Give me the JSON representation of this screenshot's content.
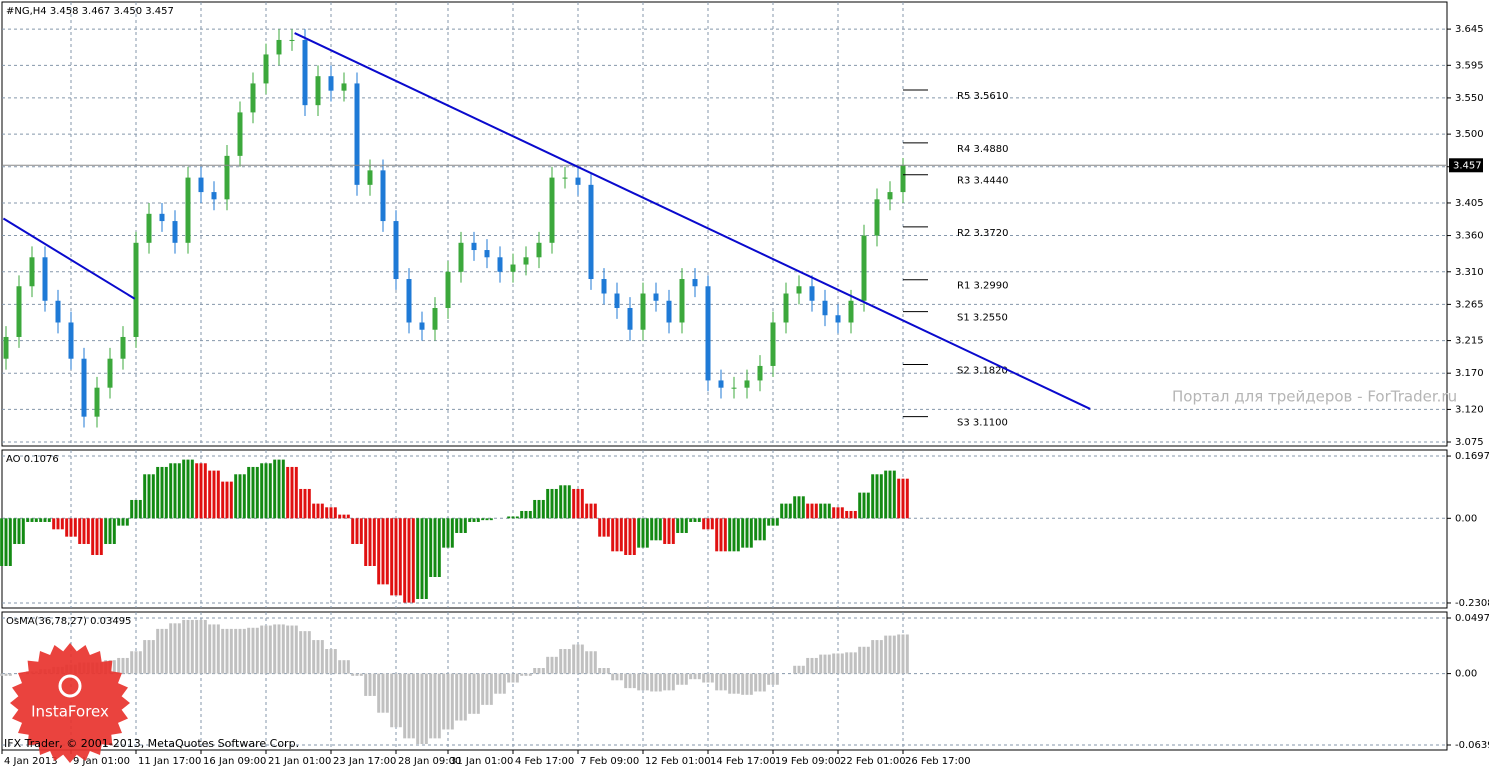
{
  "chart_data": [
    {
      "type": "candlestick",
      "title": "#NG,H4  3.458 3.467 3.450 3.457",
      "categories": [
        "4 Jan 2013",
        null,
        null,
        null,
        null,
        "9 Jan 01:00",
        null,
        null,
        null,
        null,
        "11 Jan 17:00",
        null,
        null,
        null,
        null,
        "16 Jan 09:00",
        null,
        null,
        null,
        null,
        "21 Jan 01:00",
        null,
        null,
        null,
        null,
        "23 Jan 17:00",
        null,
        null,
        null,
        null,
        "28 Jan 09:00",
        null,
        null,
        null,
        "31 Jan 01:00",
        null,
        null,
        null,
        null,
        "4 Feb 17:00",
        null,
        null,
        null,
        null,
        "7 Feb 09:00",
        null,
        null,
        null,
        null,
        "12 Feb 01:00",
        null,
        null,
        null,
        null,
        "14 Feb 17:00",
        null,
        null,
        null,
        null,
        "19 Feb 09:00",
        null,
        null,
        null,
        null,
        "22 Feb 01:00",
        null,
        null,
        null,
        null,
        "26 Feb 17:00"
      ],
      "open": [
        3.19,
        3.22,
        3.29,
        3.33,
        3.27,
        3.24,
        3.19,
        3.11,
        3.15,
        3.19,
        3.22,
        3.35,
        3.39,
        3.38,
        3.35,
        3.44,
        3.42,
        3.41,
        3.47,
        3.53,
        3.57,
        3.61,
        3.63,
        3.63,
        3.54,
        3.58,
        3.56,
        3.57,
        3.43,
        3.45,
        3.38,
        3.3,
        3.24,
        3.23,
        3.26,
        3.31,
        3.35,
        3.34,
        3.33,
        3.31,
        3.32,
        3.33,
        3.35,
        3.44,
        3.44,
        3.43,
        3.3,
        3.28,
        3.26,
        3.23,
        3.28,
        3.27,
        3.24,
        3.3,
        3.29,
        3.16,
        3.15,
        3.15,
        3.16,
        3.18,
        3.24,
        3.28,
        3.29,
        3.27,
        3.25,
        3.24,
        3.27,
        3.36,
        3.41,
        3.42
      ],
      "high": [
        3.235,
        3.305,
        3.345,
        3.345,
        3.285,
        3.255,
        3.205,
        3.165,
        3.205,
        3.235,
        3.365,
        3.405,
        3.405,
        3.395,
        3.455,
        3.455,
        3.435,
        3.485,
        3.545,
        3.585,
        3.625,
        3.645,
        3.645,
        3.645,
        3.595,
        3.595,
        3.585,
        3.585,
        3.465,
        3.465,
        3.395,
        3.315,
        3.255,
        3.275,
        3.325,
        3.365,
        3.365,
        3.355,
        3.345,
        3.335,
        3.345,
        3.365,
        3.455,
        3.455,
        3.455,
        3.445,
        3.315,
        3.295,
        3.275,
        3.295,
        3.295,
        3.285,
        3.315,
        3.315,
        3.305,
        3.175,
        3.165,
        3.175,
        3.195,
        3.255,
        3.295,
        3.305,
        3.305,
        3.285,
        3.265,
        3.285,
        3.375,
        3.425,
        3.435,
        3.467
      ],
      "low": [
        3.175,
        3.205,
        3.275,
        3.255,
        3.225,
        3.175,
        3.095,
        3.095,
        3.135,
        3.175,
        3.205,
        3.335,
        3.365,
        3.335,
        3.335,
        3.405,
        3.395,
        3.395,
        3.455,
        3.515,
        3.555,
        3.595,
        3.615,
        3.525,
        3.525,
        3.545,
        3.545,
        3.415,
        3.415,
        3.365,
        3.285,
        3.225,
        3.215,
        3.215,
        3.245,
        3.295,
        3.325,
        3.315,
        3.295,
        3.295,
        3.305,
        3.315,
        3.335,
        3.425,
        3.415,
        3.285,
        3.265,
        3.245,
        3.215,
        3.215,
        3.255,
        3.225,
        3.225,
        3.275,
        3.145,
        3.135,
        3.135,
        3.135,
        3.145,
        3.165,
        3.225,
        3.265,
        3.255,
        3.235,
        3.225,
        3.225,
        3.255,
        3.345,
        3.395,
        3.405
      ],
      "close": [
        3.22,
        3.29,
        3.33,
        3.27,
        3.24,
        3.19,
        3.11,
        3.15,
        3.19,
        3.22,
        3.35,
        3.39,
        3.38,
        3.35,
        3.44,
        3.42,
        3.41,
        3.47,
        3.53,
        3.57,
        3.61,
        3.63,
        3.63,
        3.54,
        3.58,
        3.56,
        3.57,
        3.43,
        3.45,
        3.38,
        3.3,
        3.24,
        3.23,
        3.26,
        3.31,
        3.35,
        3.34,
        3.33,
        3.31,
        3.32,
        3.33,
        3.35,
        3.44,
        3.44,
        3.43,
        3.3,
        3.28,
        3.26,
        3.23,
        3.28,
        3.27,
        3.24,
        3.3,
        3.29,
        3.16,
        3.15,
        3.15,
        3.16,
        3.18,
        3.24,
        3.28,
        3.29,
        3.27,
        3.25,
        3.24,
        3.27,
        3.36,
        3.41,
        3.42,
        3.457
      ],
      "up_color": "#3ca83c",
      "down_color": "#1f7ad6",
      "ylim": [
        3.0695,
        3.6824
      ],
      "yticks": [
        3.645,
        3.595,
        {
          "value": 3.55,
          "label": "3.550"
        },
        {
          "value": 3.5,
          "label": "3.500"
        },
        3.455,
        3.405,
        {
          "value": 3.36,
          "label": "3.360"
        },
        {
          "value": 3.31,
          "label": "3.310"
        },
        3.265,
        3.215,
        {
          "value": 3.17,
          "label": "3.170"
        },
        {
          "value": 3.12,
          "label": "3.120"
        },
        3.075
      ],
      "grid": true,
      "last_price": 3.457,
      "pivots": [
        {
          "name": "R5",
          "value": 3.561,
          "label": "3.5610"
        },
        {
          "name": "R4",
          "value": 3.488,
          "label": "3.4880"
        },
        {
          "name": "R3",
          "value": 3.444,
          "label": "3.4440"
        },
        {
          "name": "R2",
          "value": 3.372,
          "label": "3.3720"
        },
        {
          "name": "R1",
          "value": 3.299,
          "label": "3.2990"
        },
        {
          "name": "S1",
          "value": 3.255,
          "label": "3.2550"
        },
        {
          "name": "S2",
          "value": 3.182,
          "label": "3.1820"
        },
        {
          "name": "S3",
          "value": 3.11,
          "label": "3.1100"
        }
      ],
      "trendline_color": "#0a0acd",
      "trendlines": [
        {
          "x": [
            -0.2,
            9.9
          ],
          "y": [
            3.3835,
            3.2728
          ]
        },
        {
          "x": [
            22.2,
            83.4
          ],
          "y": [
            3.6395,
            3.1207
          ]
        }
      ]
    },
    {
      "type": "bar",
      "title": "AO 0.1076",
      "values": [
        -0.13,
        -0.07,
        -0.01,
        -0.01,
        -0.03,
        -0.05,
        -0.07,
        -0.1,
        -0.07,
        -0.02,
        0.05,
        0.12,
        0.14,
        0.15,
        0.16,
        0.15,
        0.13,
        0.1,
        0.12,
        0.14,
        0.15,
        0.16,
        0.14,
        0.08,
        0.04,
        0.03,
        0.01,
        -0.07,
        -0.13,
        -0.18,
        -0.21,
        -0.23,
        -0.22,
        -0.16,
        -0.08,
        -0.04,
        -0.01,
        -0.005,
        0.0,
        0.005,
        0.02,
        0.05,
        0.08,
        0.09,
        0.08,
        0.04,
        -0.05,
        -0.09,
        -0.1,
        -0.08,
        -0.06,
        -0.07,
        -0.04,
        -0.01,
        -0.03,
        -0.09,
        -0.09,
        -0.08,
        -0.06,
        -0.02,
        0.04,
        0.06,
        0.04,
        0.04,
        0.03,
        0.02,
        0.07,
        0.12,
        0.13,
        0.108
      ],
      "up_color": "#138a13",
      "down_color": "#e01010",
      "ylim": [
        -0.2445,
        0.1862
      ],
      "yticks": [
        0.1697,
        {
          "value": 0,
          "label": "0.00"
        },
        -0.2308
      ],
      "grid": true
    },
    {
      "type": "bar",
      "title": "OsMA(36,78,27) 0.03495",
      "values": [
        -0.002,
        0.0,
        0.002,
        0.004,
        0.006,
        0.008,
        0.01,
        0.01,
        0.012,
        0.014,
        0.02,
        0.03,
        0.04,
        0.045,
        0.048,
        0.048,
        0.044,
        0.04,
        0.04,
        0.041,
        0.043,
        0.044,
        0.043,
        0.038,
        0.03,
        0.022,
        0.012,
        -0.002,
        -0.02,
        -0.035,
        -0.048,
        -0.058,
        -0.063,
        -0.058,
        -0.05,
        -0.042,
        -0.036,
        -0.028,
        -0.018,
        -0.008,
        -0.002,
        0.005,
        0.015,
        0.022,
        0.026,
        0.02,
        0.005,
        -0.006,
        -0.013,
        -0.015,
        -0.016,
        -0.015,
        -0.01,
        -0.005,
        -0.008,
        -0.015,
        -0.018,
        -0.019,
        -0.016,
        -0.01,
        0.0,
        0.007,
        0.014,
        0.017,
        0.018,
        0.019,
        0.024,
        0.03,
        0.034,
        0.035
      ],
      "color": "#c0c0c0",
      "ylim": [
        -0.06837,
        0.05512
      ],
      "yticks": [
        0.04975,
        {
          "value": 0,
          "label": "0.00"
        },
        -0.0639
      ],
      "grid": true
    }
  ],
  "watermark": "Портал для трейдеров - ForTrader.ru",
  "copyright": "IFX Trader, © 2001-2013, MetaQuotes Software Corp.",
  "logo_text": "InstaForex"
}
